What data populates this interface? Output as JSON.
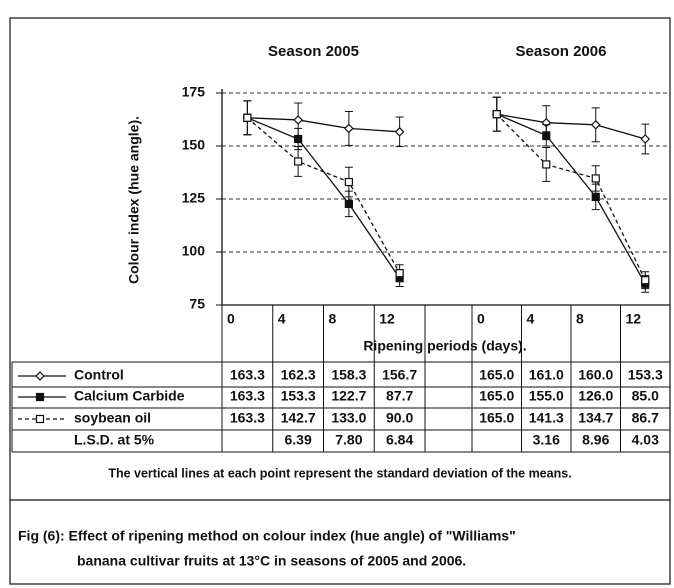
{
  "chart_data": {
    "type": "line",
    "ylabel": "Colour index (hue angle).",
    "xlabel": "Ripening periods (days).",
    "ylim": [
      75,
      175
    ],
    "yticks": [
      75,
      100,
      125,
      150,
      175
    ],
    "grid": true,
    "series": [
      {
        "name": "Control",
        "color": "#111111",
        "marker": "diamond-open",
        "dashed": false
      },
      {
        "name": "Calcium Carbide",
        "color": "#111111",
        "marker": "square-filled",
        "dashed": false
      },
      {
        "name": "soybean oil",
        "color": "#111111",
        "marker": "square-open",
        "dashed": true
      }
    ],
    "lsd_name": "L.S.D. at 5%",
    "panels": [
      {
        "title": "Season 2005",
        "categories": [
          "0",
          "4",
          "8",
          "12"
        ],
        "values": [
          [
            163.3,
            162.3,
            158.3,
            156.7
          ],
          [
            163.3,
            153.3,
            122.7,
            87.7
          ],
          [
            163.3,
            142.7,
            133.0,
            90.0
          ]
        ],
        "value_labels": [
          [
            "163.3",
            "162.3",
            "158.3",
            "156.7"
          ],
          [
            "163.3",
            "153.3",
            "122.7",
            "87.7"
          ],
          [
            "163.3",
            "142.7",
            "133.0",
            "90.0"
          ]
        ],
        "errors": [
          [
            8,
            8,
            8,
            7
          ],
          [
            8,
            5,
            6,
            4
          ],
          [
            8,
            7,
            7,
            4
          ]
        ],
        "lsd": [
          null,
          6.39,
          7.8,
          6.84
        ],
        "lsd_labels": [
          null,
          "6.39",
          "7.80",
          "6.84"
        ]
      },
      {
        "title": "Season 2006",
        "categories": [
          "0",
          "4",
          "8",
          "12"
        ],
        "values": [
          [
            165.0,
            161.0,
            160.0,
            153.3
          ],
          [
            165.0,
            155.0,
            126.0,
            85.0
          ],
          [
            165.0,
            141.3,
            134.7,
            86.7
          ]
        ],
        "value_labels": [
          [
            "165.0",
            "161.0",
            "160.0",
            "153.3"
          ],
          [
            "165.0",
            "155.0",
            "126.0",
            "85.0"
          ],
          [
            "165.0",
            "141.3",
            "134.7",
            "86.7"
          ]
        ],
        "errors": [
          [
            8,
            8,
            8,
            7
          ],
          [
            8,
            5,
            6,
            4
          ],
          [
            8,
            8,
            6,
            4
          ]
        ],
        "lsd": [
          null,
          3.16,
          8.96,
          4.03
        ],
        "lsd_labels": [
          null,
          "3.16",
          "8.96",
          "4.03"
        ]
      }
    ],
    "note": "The vertical lines at each point represent the standard deviation of the means.",
    "caption": [
      "Fig (6): Effect of ripening method on colour index (hue angle) of  \"Williams\"",
      "banana cultivar fruits at 13°C in seasons of 2005 and 2006."
    ]
  }
}
